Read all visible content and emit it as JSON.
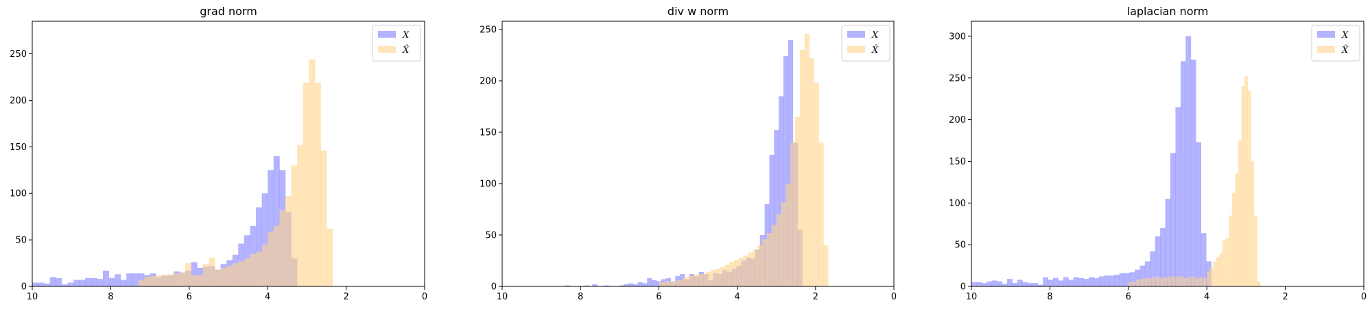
{
  "colors": {
    "real": "#8080ff",
    "recon": "#ffd38a",
    "opacity": 0.6
  },
  "legend": [
    {
      "key": "real",
      "label": "X"
    },
    {
      "key": "recon",
      "label": "X̂"
    }
  ],
  "chart_data": [
    {
      "type": "bar",
      "histogram": true,
      "title": "grad norm",
      "xlabel": "",
      "ylabel": "",
      "x_inverted": true,
      "xlim": [
        10,
        0
      ],
      "ylim": [
        0,
        285
      ],
      "xticks": [
        10,
        8,
        6,
        4,
        2,
        0
      ],
      "yticks": [
        0,
        50,
        100,
        150,
        200,
        250
      ],
      "legend_position": "top-right",
      "series": [
        {
          "name": "X",
          "color": "#8080ff",
          "bin_width": 0.15,
          "bins": [
            [
              10,
              4
            ],
            [
              9.85,
              4
            ],
            [
              9.7,
              3
            ],
            [
              9.55,
              10
            ],
            [
              9.4,
              9
            ],
            [
              9.25,
              2
            ],
            [
              9.1,
              4
            ],
            [
              8.95,
              7
            ],
            [
              8.8,
              7
            ],
            [
              8.65,
              9
            ],
            [
              8.5,
              9
            ],
            [
              8.35,
              8
            ],
            [
              8.2,
              17
            ],
            [
              8.05,
              9
            ],
            [
              7.9,
              13
            ],
            [
              7.75,
              7
            ],
            [
              7.6,
              14
            ],
            [
              7.45,
              14
            ],
            [
              7.3,
              14
            ],
            [
              7.15,
              12
            ],
            [
              7.0,
              14
            ],
            [
              6.85,
              10
            ],
            [
              6.7,
              12
            ],
            [
              6.55,
              12
            ],
            [
              6.4,
              16
            ],
            [
              6.25,
              15
            ],
            [
              6.1,
              17
            ],
            [
              5.95,
              26
            ],
            [
              5.8,
              20
            ],
            [
              5.65,
              21
            ],
            [
              5.5,
              22
            ],
            [
              5.35,
              18
            ],
            [
              5.2,
              24
            ],
            [
              5.05,
              28
            ],
            [
              4.9,
              34
            ],
            [
              4.75,
              46
            ],
            [
              4.6,
              55
            ],
            [
              4.45,
              65
            ],
            [
              4.3,
              85
            ],
            [
              4.15,
              100
            ],
            [
              4.0,
              125
            ],
            [
              3.85,
              140
            ],
            [
              3.7,
              125
            ],
            [
              3.55,
              80
            ],
            [
              3.4,
              30
            ]
          ]
        },
        {
          "name": "X̂",
          "color": "#ffd38a",
          "bin_width": 0.15,
          "bins": [
            [
              7.3,
              7
            ],
            [
              7.15,
              10
            ],
            [
              7.0,
              11
            ],
            [
              6.85,
              12
            ],
            [
              6.7,
              12
            ],
            [
              6.55,
              13
            ],
            [
              6.4,
              14
            ],
            [
              6.25,
              15
            ],
            [
              6.1,
              25
            ],
            [
              5.95,
              12
            ],
            [
              5.8,
              12
            ],
            [
              5.65,
              24
            ],
            [
              5.5,
              31
            ],
            [
              5.35,
              18
            ],
            [
              5.2,
              20
            ],
            [
              5.05,
              22
            ],
            [
              4.9,
              25
            ],
            [
              4.75,
              27
            ],
            [
              4.6,
              30
            ],
            [
              4.45,
              35
            ],
            [
              4.3,
              37
            ],
            [
              4.15,
              45
            ],
            [
              4.0,
              59
            ],
            [
              3.85,
              65
            ],
            [
              3.7,
              82
            ],
            [
              3.55,
              97
            ],
            [
              3.4,
              130
            ],
            [
              3.25,
              152
            ],
            [
              3.1,
              219
            ],
            [
              2.95,
              244
            ],
            [
              2.8,
              219
            ],
            [
              2.65,
              146
            ],
            [
              2.5,
              62
            ]
          ]
        }
      ]
    },
    {
      "type": "bar",
      "histogram": true,
      "title": "div w norm",
      "xlabel": "",
      "ylabel": "",
      "x_inverted": true,
      "xlim": [
        10,
        0
      ],
      "ylim": [
        0,
        258
      ],
      "xticks": [
        10,
        8,
        6,
        4,
        2,
        0
      ],
      "yticks": [
        0,
        50,
        100,
        150,
        200,
        250
      ],
      "legend_position": "top-right",
      "series": [
        {
          "name": "X",
          "color": "#8080ff",
          "bin_width": 0.12,
          "bins": [
            [
              8.4,
              1
            ],
            [
              7.9,
              1
            ],
            [
              7.7,
              2
            ],
            [
              7.4,
              1
            ],
            [
              7.0,
              1
            ],
            [
              6.9,
              2
            ],
            [
              6.78,
              3
            ],
            [
              6.66,
              2
            ],
            [
              6.54,
              4
            ],
            [
              6.42,
              3
            ],
            [
              6.3,
              8
            ],
            [
              6.18,
              6
            ],
            [
              6.06,
              5
            ],
            [
              5.94,
              7
            ],
            [
              5.82,
              8
            ],
            [
              5.7,
              5
            ],
            [
              5.58,
              10
            ],
            [
              5.46,
              12
            ],
            [
              5.34,
              7
            ],
            [
              5.22,
              12
            ],
            [
              5.1,
              10
            ],
            [
              4.98,
              14
            ],
            [
              4.86,
              12
            ],
            [
              4.74,
              6
            ],
            [
              4.62,
              13
            ],
            [
              4.5,
              12
            ],
            [
              4.38,
              16
            ],
            [
              4.26,
              14
            ],
            [
              4.14,
              17
            ],
            [
              4.02,
              20
            ],
            [
              3.9,
              25
            ],
            [
              3.78,
              28
            ],
            [
              3.66,
              27
            ],
            [
              3.54,
              36
            ],
            [
              3.42,
              50
            ],
            [
              3.3,
              80
            ],
            [
              3.18,
              128
            ],
            [
              3.06,
              152
            ],
            [
              2.94,
              185
            ],
            [
              2.82,
              224
            ],
            [
              2.7,
              240
            ],
            [
              2.58,
              140
            ],
            [
              2.46,
              55
            ]
          ]
        },
        {
          "name": "X̂",
          "color": "#ffd38a",
          "bin_width": 0.12,
          "bins": [
            [
              6.0,
              4
            ],
            [
              5.88,
              5
            ],
            [
              5.76,
              5
            ],
            [
              5.64,
              5
            ],
            [
              5.52,
              6
            ],
            [
              5.4,
              8
            ],
            [
              5.28,
              10
            ],
            [
              5.16,
              11
            ],
            [
              5.04,
              12
            ],
            [
              4.92,
              12
            ],
            [
              4.8,
              14
            ],
            [
              4.68,
              16
            ],
            [
              4.56,
              17
            ],
            [
              4.44,
              19
            ],
            [
              4.32,
              21
            ],
            [
              4.2,
              24
            ],
            [
              4.08,
              26
            ],
            [
              3.96,
              28
            ],
            [
              3.84,
              30
            ],
            [
              3.72,
              33
            ],
            [
              3.6,
              36
            ],
            [
              3.48,
              40
            ],
            [
              3.36,
              46
            ],
            [
              3.24,
              52
            ],
            [
              3.12,
              60
            ],
            [
              3.0,
              70
            ],
            [
              2.88,
              82
            ],
            [
              2.76,
              100
            ],
            [
              2.64,
              140
            ],
            [
              2.52,
              165
            ],
            [
              2.4,
              230
            ],
            [
              2.28,
              246
            ],
            [
              2.16,
              222
            ],
            [
              2.04,
              198
            ],
            [
              1.92,
              140
            ],
            [
              1.8,
              40
            ]
          ]
        }
      ]
    },
    {
      "type": "bar",
      "histogram": true,
      "title": "laplacian norm",
      "xlabel": "",
      "ylabel": "",
      "x_inverted": true,
      "xlim": [
        10,
        0
      ],
      "ylim": [
        0,
        318
      ],
      "xticks": [
        10,
        8,
        6,
        4,
        2,
        0
      ],
      "yticks": [
        0,
        50,
        100,
        150,
        200,
        250,
        300
      ],
      "legend_position": "top-right",
      "series": [
        {
          "name": "X",
          "color": "#8080ff",
          "bin_width": 0.13,
          "bins": [
            [
              10,
              5
            ],
            [
              9.87,
              5
            ],
            [
              9.74,
              4
            ],
            [
              9.61,
              6
            ],
            [
              9.48,
              7
            ],
            [
              9.35,
              6
            ],
            [
              9.22,
              3
            ],
            [
              9.09,
              9
            ],
            [
              8.96,
              4
            ],
            [
              8.83,
              8
            ],
            [
              8.7,
              5
            ],
            [
              8.57,
              4
            ],
            [
              8.44,
              4
            ],
            [
              8.31,
              2
            ],
            [
              8.18,
              11
            ],
            [
              8.05,
              8
            ],
            [
              7.92,
              10
            ],
            [
              7.79,
              7
            ],
            [
              7.66,
              11
            ],
            [
              7.53,
              8
            ],
            [
              7.4,
              11
            ],
            [
              7.27,
              10
            ],
            [
              7.14,
              9
            ],
            [
              7.01,
              11
            ],
            [
              6.88,
              10
            ],
            [
              6.75,
              12
            ],
            [
              6.62,
              13
            ],
            [
              6.49,
              13
            ],
            [
              6.36,
              14
            ],
            [
              6.23,
              16
            ],
            [
              6.1,
              16
            ],
            [
              5.97,
              17
            ],
            [
              5.84,
              20
            ],
            [
              5.71,
              25
            ],
            [
              5.58,
              30
            ],
            [
              5.45,
              42
            ],
            [
              5.32,
              60
            ],
            [
              5.19,
              70
            ],
            [
              5.06,
              105
            ],
            [
              4.93,
              160
            ],
            [
              4.8,
              215
            ],
            [
              4.67,
              270
            ],
            [
              4.54,
              300
            ],
            [
              4.41,
              272
            ],
            [
              4.28,
              173
            ],
            [
              4.15,
              64
            ],
            [
              4.02,
              30
            ]
          ]
        },
        {
          "name": "X̂",
          "color": "#ffd38a",
          "bin_width": 0.08,
          "bins": [
            [
              6.0,
              5
            ],
            [
              5.9,
              6
            ],
            [
              5.8,
              8
            ],
            [
              5.7,
              9
            ],
            [
              5.6,
              10
            ],
            [
              5.5,
              10
            ],
            [
              5.4,
              11
            ],
            [
              5.3,
              12
            ],
            [
              5.2,
              10
            ],
            [
              5.1,
              11
            ],
            [
              5.0,
              12
            ],
            [
              4.9,
              12
            ],
            [
              4.8,
              11
            ],
            [
              4.7,
              12
            ],
            [
              4.6,
              10
            ],
            [
              4.5,
              11
            ],
            [
              4.4,
              12
            ],
            [
              4.3,
              10
            ],
            [
              4.2,
              11
            ],
            [
              4.1,
              10
            ],
            [
              4.0,
              18
            ],
            [
              3.92,
              22
            ],
            [
              3.84,
              30
            ],
            [
              3.76,
              35
            ],
            [
              3.68,
              40
            ],
            [
              3.6,
              55
            ],
            [
              3.52,
              58
            ],
            [
              3.44,
              85
            ],
            [
              3.36,
              112
            ],
            [
              3.28,
              136
            ],
            [
              3.2,
              175
            ],
            [
              3.12,
              240
            ],
            [
              3.04,
              252
            ],
            [
              2.96,
              235
            ],
            [
              2.88,
              150
            ],
            [
              2.8,
              85
            ],
            [
              2.72,
              6
            ]
          ]
        }
      ]
    }
  ]
}
